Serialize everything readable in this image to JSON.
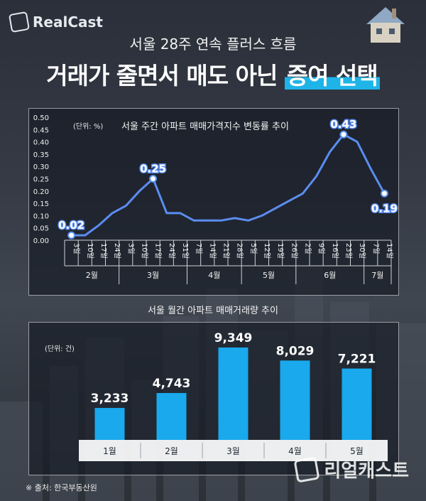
{
  "brand": {
    "logo_text": "RealCast",
    "bottom_text": "리얼캐스트"
  },
  "header": {
    "subtitle": "서울 28주 연속 플러스 흐름",
    "headline_main": "거래가 줄면서 매도 아닌",
    "headline_highlight": "증여 선택"
  },
  "line_chart": {
    "title": "서울 주간 아파트 매매가격지수 변동률 추이",
    "unit": "(단위: %)"
  },
  "bar_chart": {
    "title": "서울 월간 아파트 매매거래량 추이",
    "unit": "(단위: 건)"
  },
  "source": "※ 출처: 한국부동산원",
  "colors": {
    "line": "#5b8def",
    "bar": "#19a9ec",
    "highlight": "#1fb4e8"
  },
  "chart_data": [
    {
      "type": "line",
      "title": "서울 주간 아파트 매매가격지수 변동률 추이",
      "ylabel": "(단위: %)",
      "ylim": [
        0,
        0.5
      ],
      "yticks": [
        "0.00",
        "0.05",
        "0.10",
        "0.15",
        "0.20",
        "0.25",
        "0.30",
        "0.35",
        "0.40",
        "0.45",
        "0.50"
      ],
      "x": [
        "3일",
        "10일",
        "17일",
        "24일",
        "3일",
        "10일",
        "17일",
        "24일",
        "31일",
        "7일",
        "14일",
        "21일",
        "28일",
        "5일",
        "12일",
        "19일",
        "26일",
        "2일",
        "9일",
        "16일",
        "23일",
        "30일",
        "7일",
        "14일"
      ],
      "values": [
        0.02,
        0.02,
        0.06,
        0.11,
        0.14,
        0.2,
        0.25,
        0.11,
        0.11,
        0.08,
        0.08,
        0.08,
        0.09,
        0.08,
        0.1,
        0.13,
        0.16,
        0.19,
        0.26,
        0.36,
        0.43,
        0.4,
        0.29,
        0.19
      ],
      "month_groups": [
        {
          "label": "2월",
          "start": 0,
          "end": 3
        },
        {
          "label": "3월",
          "start": 4,
          "end": 8
        },
        {
          "label": "4월",
          "start": 9,
          "end": 12
        },
        {
          "label": "5월",
          "start": 13,
          "end": 16
        },
        {
          "label": "6월",
          "start": 17,
          "end": 21
        },
        {
          "label": "7월",
          "start": 22,
          "end": 23
        }
      ],
      "data_labels": [
        {
          "index": 0,
          "text": "0.02"
        },
        {
          "index": 6,
          "text": "0.25"
        },
        {
          "index": 20,
          "text": "0.43"
        },
        {
          "index": 23,
          "text": "0.19"
        }
      ]
    },
    {
      "type": "bar",
      "title": "서울 월간 아파트 매매거래량 추이",
      "ylabel": "(단위: 건)",
      "categories": [
        "1월",
        "2월",
        "3월",
        "4월",
        "5월"
      ],
      "values": [
        3233,
        4743,
        9349,
        8029,
        7221
      ],
      "value_labels": [
        "3,233",
        "4,743",
        "9,349",
        "8,029",
        "7,221"
      ],
      "ylim": [
        0,
        9349
      ]
    }
  ]
}
